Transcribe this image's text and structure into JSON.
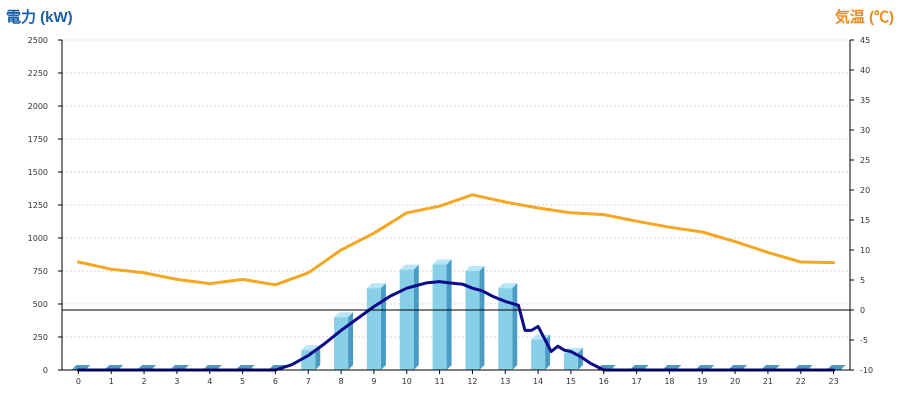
{
  "chart_data": {
    "type": "bar",
    "left_axis_title": "電力 (kW)",
    "right_axis_title": "気温 (℃)",
    "colors": {
      "left_title": "#1a5fa8",
      "right_title": "#f08a1c",
      "bar_front": "#88cfe8",
      "bar_side": "#4a9cc4",
      "bar_top": "#b8e6f6",
      "power_line": "#0b0b8c",
      "temp_line": "#f5a623",
      "zero_line": "#000000"
    },
    "categories": [
      "0",
      "1",
      "2",
      "3",
      "4",
      "5",
      "6",
      "7",
      "8",
      "9",
      "10",
      "11",
      "12",
      "13",
      "14",
      "15",
      "16",
      "17",
      "18",
      "19",
      "20",
      "21",
      "22",
      "23"
    ],
    "left_axis": {
      "min": 0,
      "max": 2500,
      "ticks": [
        "0",
        "250",
        "500",
        "750",
        "1000",
        "1250",
        "1500",
        "1750",
        "2000",
        "2250",
        "2500"
      ]
    },
    "right_axis": {
      "min": -10,
      "max": 45,
      "ticks": [
        "-10",
        "-5",
        "0",
        "5",
        "10",
        "15",
        "20",
        "25",
        "30",
        "35",
        "40",
        "45"
      ]
    },
    "grid": true,
    "series": [
      {
        "kind": "bar",
        "axis": "left",
        "values": [
          0,
          0,
          0,
          0,
          0,
          0,
          0,
          150,
          400,
          620,
          760,
          800,
          750,
          620,
          230,
          130,
          0,
          0,
          0,
          0,
          0,
          0,
          0,
          0
        ]
      },
      {
        "kind": "line",
        "axis": "left",
        "style": "power",
        "points": [
          [
            0,
            0
          ],
          [
            6,
            0
          ],
          [
            6.5,
            40
          ],
          [
            7,
            110
          ],
          [
            7.5,
            200
          ],
          [
            8,
            300
          ],
          [
            8.5,
            390
          ],
          [
            9,
            480
          ],
          [
            9.5,
            560
          ],
          [
            10,
            620
          ],
          [
            10.3,
            640
          ],
          [
            10.6,
            660
          ],
          [
            11,
            670
          ],
          [
            11.3,
            660
          ],
          [
            11.7,
            650
          ],
          [
            12,
            620
          ],
          [
            12.3,
            600
          ],
          [
            12.6,
            560
          ],
          [
            13,
            520
          ],
          [
            13.4,
            490
          ],
          [
            13.6,
            300
          ],
          [
            13.8,
            300
          ],
          [
            14,
            330
          ],
          [
            14.4,
            140
          ],
          [
            14.6,
            180
          ],
          [
            14.8,
            150
          ],
          [
            15,
            140
          ],
          [
            15.3,
            100
          ],
          [
            15.6,
            50
          ],
          [
            16,
            0
          ],
          [
            23,
            0
          ]
        ]
      },
      {
        "kind": "line",
        "axis": "right",
        "style": "temperature",
        "points": [
          [
            0,
            8
          ],
          [
            1,
            6.8
          ],
          [
            2,
            6.2
          ],
          [
            3,
            5.1
          ],
          [
            4,
            4.4
          ],
          [
            5,
            5.1
          ],
          [
            6,
            4.2
          ],
          [
            7,
            6.2
          ],
          [
            8,
            10
          ],
          [
            9,
            12.8
          ],
          [
            10,
            16.2
          ],
          [
            11,
            17.3
          ],
          [
            12,
            19.2
          ],
          [
            13,
            18
          ],
          [
            14,
            17
          ],
          [
            15,
            16.2
          ],
          [
            16,
            15.9
          ],
          [
            17,
            14.8
          ],
          [
            18,
            13.8
          ],
          [
            19,
            13
          ],
          [
            20,
            11.4
          ],
          [
            21,
            9.6
          ],
          [
            22,
            8
          ],
          [
            23,
            7.9
          ]
        ]
      }
    ]
  }
}
